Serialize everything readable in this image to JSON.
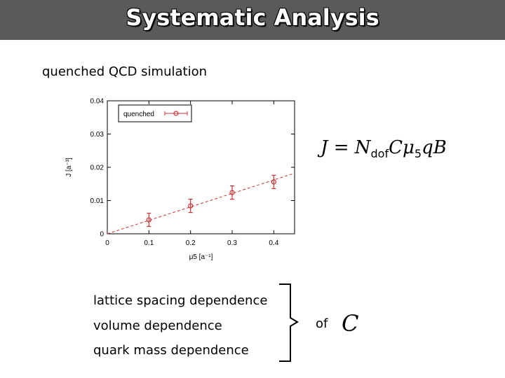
{
  "slide": {
    "title": "Systematic Analysis",
    "subtitle": "quenched QCD simulation",
    "dependences": [
      "lattice spacing dependence",
      "volume dependence",
      "quark mass dependence"
    ],
    "of_label": "of",
    "c_symbol": "C",
    "formula": {
      "lhs": "J",
      "eq": " = ",
      "N": "N",
      "N_sub": "dof",
      "rest": "Cμ",
      "mu_sub": "5",
      "tail": "qB"
    }
  },
  "chart_data": {
    "type": "scatter",
    "title": "",
    "xlabel": "μ5 [a⁻¹]",
    "ylabel": "J [a⁻³]",
    "xlim": [
      0,
      0.45
    ],
    "ylim": [
      0,
      0.04
    ],
    "xticks": [
      "0",
      "0.1",
      "0.2",
      "0.3",
      "0.4"
    ],
    "yticks": [
      "0",
      "0.01",
      "0.02",
      "0.03",
      "0.04"
    ],
    "legend_position": "top-left",
    "series": [
      {
        "name": "quenched",
        "color": "#cc3333",
        "points": [
          {
            "x": 0.1,
            "y": 0.0042,
            "err": 0.002
          },
          {
            "x": 0.2,
            "y": 0.0084,
            "err": 0.002
          },
          {
            "x": 0.3,
            "y": 0.0124,
            "err": 0.002
          },
          {
            "x": 0.4,
            "y": 0.0156,
            "err": 0.002
          }
        ],
        "fit_line": {
          "slope": 0.0405,
          "intercept": 0.0
        }
      }
    ]
  }
}
